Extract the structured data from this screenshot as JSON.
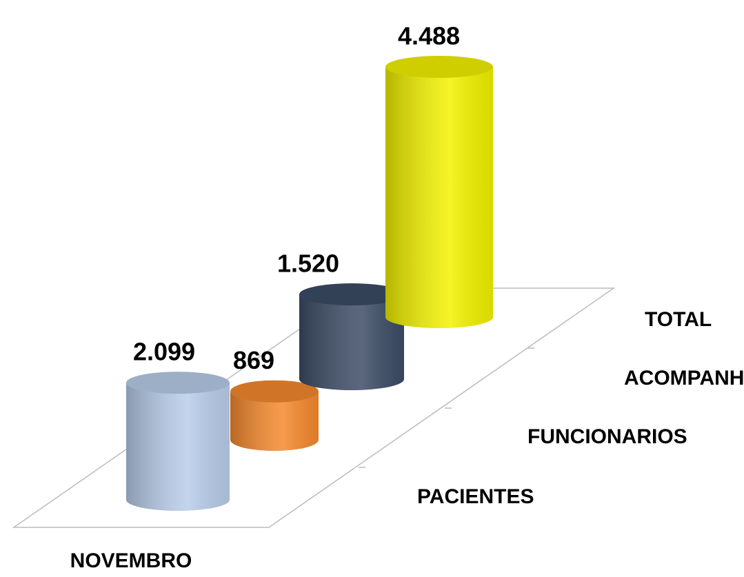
{
  "chart_data": {
    "type": "bar",
    "categories": [
      "NOVEMBRO"
    ],
    "series": [
      {
        "name": "PACIENTES",
        "color": "#b9cdea",
        "values": [
          2099
        ],
        "value_labels": [
          "2.099"
        ]
      },
      {
        "name": "FUNCIONARIOS",
        "color": "#f58a2e",
        "values": [
          869
        ],
        "value_labels": [
          "869"
        ]
      },
      {
        "name": "ACOMPANHATES",
        "color": "#3d4d66",
        "values": [
          1520
        ],
        "value_labels": [
          "1.520"
        ]
      },
      {
        "name": "TOTAL",
        "color": "#f2f200",
        "values": [
          4488
        ],
        "value_labels": [
          "4.488"
        ]
      }
    ]
  }
}
